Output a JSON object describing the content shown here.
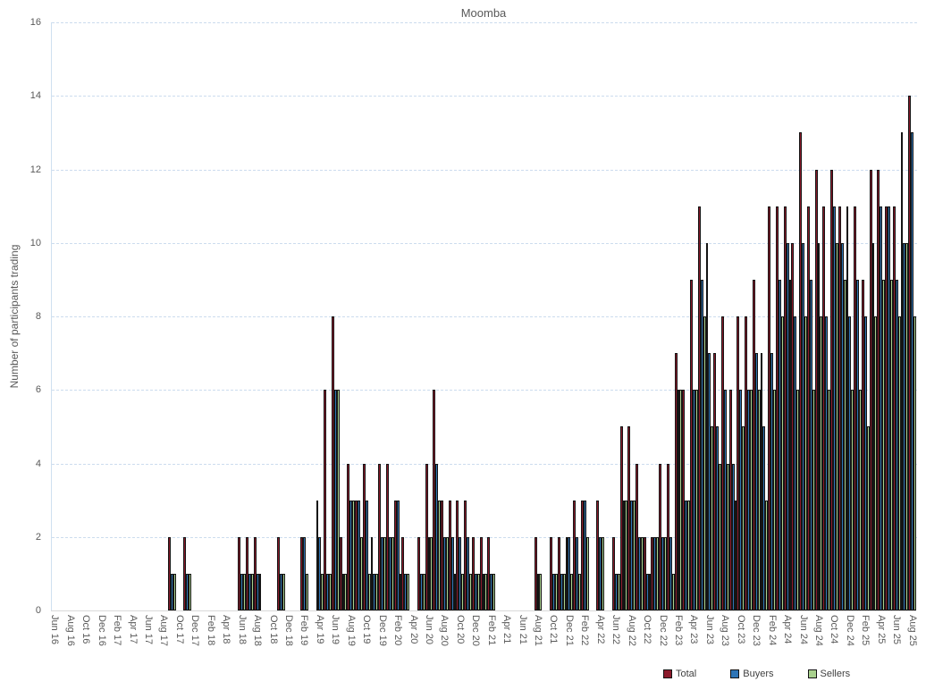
{
  "title": "Moomba",
  "y_axis": {
    "title": "Number of participants trading",
    "min": 0,
    "max": 16,
    "step": 2,
    "tick_labels": [
      "0",
      "2",
      "4",
      "6",
      "8",
      "10",
      "12",
      "14",
      "16"
    ]
  },
  "x_axis": {
    "tick_labels": [
      "Jun 16",
      "Aug 16",
      "Oct 16",
      "Dec 16",
      "Feb 17",
      "Apr 17",
      "Jun 17",
      "Aug 17",
      "Oct 17",
      "Dec 17",
      "Feb 18",
      "Apr 18",
      "Jun 18",
      "Aug 18",
      "Oct 18",
      "Dec 18",
      "Feb 19",
      "Apr 19",
      "Jun 19",
      "Aug 19",
      "Oct 19",
      "Dec 19",
      "Feb 20",
      "Apr 20",
      "Jun 20",
      "Aug 20",
      "Oct 20",
      "Dec 20",
      "Feb 21",
      "Apr 21",
      "Jun 21",
      "Aug 21",
      "Oct 21",
      "Dec 21",
      "Feb 22",
      "Apr 22",
      "Jun 22",
      "Aug 22",
      "Oct 22",
      "Dec 22",
      "Feb 23",
      "Apr 23",
      "Jun 23",
      "Aug 23",
      "Oct 23",
      "Dec 23",
      "Feb 24",
      "Apr 24",
      "Jun 24",
      "Aug 24",
      "Oct 24",
      "Dec 24",
      "Feb 25",
      "Apr 25",
      "Jun 25",
      "Aug 25"
    ]
  },
  "legend": [
    {
      "label": "Total",
      "color": "#8b1a2b"
    },
    {
      "label": "Buyers",
      "color": "#2e75b6"
    },
    {
      "label": "Sellers",
      "color": "#a9d18e"
    }
  ],
  "chart_data": {
    "type": "bar",
    "title": "Moomba",
    "xlabel": "",
    "ylabel": "Number of participants trading",
    "ylim": [
      0,
      16
    ],
    "grid": true,
    "legend_position": "bottom",
    "categories": [
      "Jun 16",
      "Jul 16",
      "Aug 16",
      "Sep 16",
      "Oct 16",
      "Nov 16",
      "Dec 16",
      "Jan 17",
      "Feb 17",
      "Mar 17",
      "Apr 17",
      "May 17",
      "Jun 17",
      "Jul 17",
      "Aug 17",
      "Sep 17",
      "Oct 17",
      "Nov 17",
      "Dec 17",
      "Jan 18",
      "Feb 18",
      "Mar 18",
      "Apr 18",
      "May 18",
      "Jun 18",
      "Jul 18",
      "Aug 18",
      "Sep 18",
      "Oct 18",
      "Nov 18",
      "Dec 18",
      "Jan 19",
      "Feb 19",
      "Mar 19",
      "Apr 19",
      "May 19",
      "Jun 19",
      "Jul 19",
      "Aug 19",
      "Sep 19",
      "Oct 19",
      "Nov 19",
      "Dec 19",
      "Jan 20",
      "Feb 20",
      "Mar 20",
      "Apr 20",
      "May 20",
      "Jun 20",
      "Jul 20",
      "Aug 20",
      "Sep 20",
      "Oct 20",
      "Nov 20",
      "Dec 20",
      "Jan 21",
      "Feb 21",
      "Mar 21",
      "Apr 21",
      "May 21",
      "Jun 21",
      "Jul 21",
      "Aug 21",
      "Sep 21",
      "Oct 21",
      "Nov 21",
      "Dec 21",
      "Jan 22",
      "Feb 22",
      "Mar 22",
      "Apr 22",
      "May 22",
      "Jun 22",
      "Jul 22",
      "Aug 22",
      "Sep 22",
      "Oct 22",
      "Nov 22",
      "Dec 22",
      "Jan 23",
      "Feb 23",
      "Mar 23",
      "Apr 23",
      "May 23",
      "Jun 23",
      "Jul 23",
      "Aug 23",
      "Sep 23",
      "Oct 23",
      "Nov 23",
      "Dec 23",
      "Jan 24",
      "Feb 24",
      "Mar 24",
      "Apr 24",
      "May 24",
      "Jun 24",
      "Jul 24",
      "Aug 24",
      "Sep 24",
      "Oct 24",
      "Nov 24",
      "Dec 24",
      "Jan 25",
      "Feb 25",
      "Mar 25",
      "Apr 25",
      "May 25",
      "Jun 25",
      "Jul 25",
      "Aug 25"
    ],
    "series": [
      {
        "name": "Total",
        "color": "#8b1a2b",
        "values": [
          0,
          0,
          0,
          0,
          0,
          0,
          0,
          0,
          0,
          0,
          0,
          0,
          0,
          0,
          0,
          2,
          0,
          2,
          0,
          0,
          0,
          0,
          0,
          0,
          2,
          2,
          2,
          0,
          0,
          2,
          0,
          0,
          2,
          0,
          3,
          6,
          8,
          2,
          4,
          3,
          4,
          2,
          4,
          4,
          3,
          2,
          0,
          2,
          4,
          6,
          3,
          3,
          3,
          3,
          2,
          2,
          2,
          0,
          0,
          0,
          0,
          0,
          2,
          0,
          2,
          2,
          2,
          3,
          3,
          0,
          3,
          0,
          2,
          5,
          5,
          4,
          2,
          2,
          4,
          4,
          7,
          6,
          9,
          11,
          10,
          7,
          8,
          6,
          8,
          8,
          9,
          7,
          11,
          11,
          11,
          10,
          13,
          11,
          12,
          11,
          12,
          11,
          11,
          11,
          9,
          12,
          12,
          11,
          11,
          13,
          14
        ]
      },
      {
        "name": "Buyers",
        "color": "#2e75b6",
        "values": [
          0,
          0,
          0,
          0,
          0,
          0,
          0,
          0,
          0,
          0,
          0,
          0,
          0,
          0,
          0,
          1,
          0,
          1,
          0,
          0,
          0,
          0,
          0,
          0,
          1,
          1,
          1,
          0,
          0,
          1,
          0,
          0,
          2,
          0,
          2,
          1,
          6,
          1,
          3,
          3,
          3,
          1,
          2,
          2,
          3,
          1,
          0,
          1,
          2,
          4,
          2,
          2,
          2,
          2,
          1,
          1,
          1,
          0,
          0,
          0,
          0,
          0,
          1,
          0,
          1,
          1,
          2,
          2,
          3,
          0,
          2,
          0,
          1,
          3,
          3,
          2,
          1,
          2,
          2,
          2,
          6,
          3,
          6,
          9,
          7,
          5,
          6,
          4,
          6,
          6,
          7,
          5,
          7,
          9,
          10,
          8,
          10,
          9,
          10,
          8,
          11,
          10,
          8,
          9,
          8,
          10,
          11,
          11,
          9,
          10,
          13
        ]
      },
      {
        "name": "Sellers",
        "color": "#a9d18e",
        "values": [
          0,
          0,
          0,
          0,
          0,
          0,
          0,
          0,
          0,
          0,
          0,
          0,
          0,
          0,
          0,
          1,
          0,
          1,
          0,
          0,
          0,
          0,
          0,
          0,
          1,
          1,
          1,
          0,
          0,
          1,
          0,
          0,
          1,
          0,
          1,
          1,
          6,
          1,
          3,
          2,
          1,
          1,
          2,
          2,
          1,
          1,
          0,
          1,
          2,
          3,
          2,
          1,
          1,
          1,
          1,
          1,
          1,
          0,
          0,
          0,
          0,
          0,
          1,
          0,
          1,
          1,
          1,
          1,
          2,
          0,
          2,
          0,
          1,
          3,
          3,
          2,
          1,
          2,
          2,
          1,
          6,
          3,
          6,
          8,
          5,
          4,
          4,
          3,
          5,
          6,
          6,
          3,
          6,
          8,
          9,
          6,
          8,
          6,
          8,
          6,
          10,
          9,
          6,
          6,
          5,
          8,
          9,
          9,
          8,
          10,
          8
        ]
      }
    ]
  }
}
